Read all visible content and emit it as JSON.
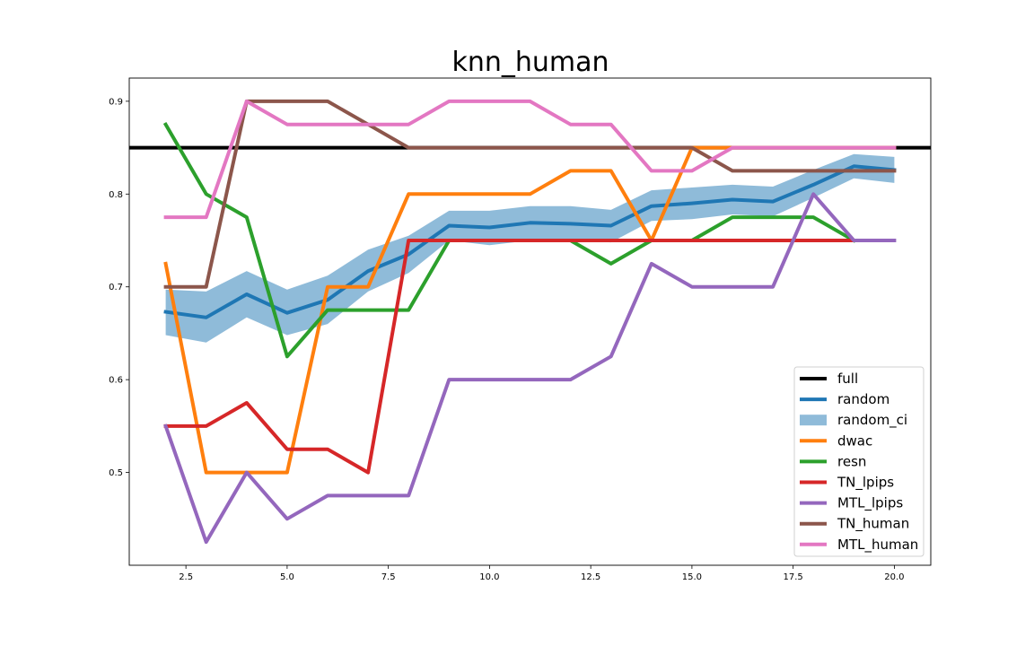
{
  "chart_data": {
    "type": "line",
    "title": "knn_human",
    "xlabel": "",
    "ylabel": "",
    "xlim": [
      1.1,
      20.9
    ],
    "ylim": [
      0.4,
      0.925
    ],
    "xticks": [
      2.5,
      5.0,
      7.5,
      10.0,
      12.5,
      15.0,
      17.5,
      20.0
    ],
    "xtick_labels": [
      "2.5",
      "5.0",
      "7.5",
      "10.0",
      "12.5",
      "15.0",
      "17.5",
      "20.0"
    ],
    "yticks": [
      0.5,
      0.6,
      0.7,
      0.8,
      0.9
    ],
    "ytick_labels": [
      "0.5",
      "0.6",
      "0.7",
      "0.8",
      "0.9"
    ],
    "grid": false,
    "legend_position": "lower-right",
    "x": [
      2,
      3,
      4,
      5,
      6,
      7,
      8,
      9,
      10,
      11,
      12,
      13,
      14,
      15,
      16,
      17,
      18,
      19,
      20
    ],
    "hline": {
      "name": "full",
      "value": 0.85,
      "color": "#000000"
    },
    "band": {
      "name": "random_ci",
      "color": "#1f77b4",
      "lower": [
        0.648,
        0.64,
        0.667,
        0.648,
        0.66,
        0.695,
        0.715,
        0.75,
        0.745,
        0.75,
        0.75,
        0.748,
        0.771,
        0.773,
        0.778,
        0.776,
        0.796,
        0.817,
        0.812
      ],
      "upper": [
        0.697,
        0.695,
        0.717,
        0.697,
        0.712,
        0.74,
        0.755,
        0.782,
        0.782,
        0.787,
        0.787,
        0.783,
        0.804,
        0.807,
        0.81,
        0.808,
        0.826,
        0.843,
        0.84
      ]
    },
    "series": [
      {
        "name": "random",
        "color": "#1f77b4",
        "values": [
          0.673,
          0.667,
          0.692,
          0.672,
          0.686,
          0.717,
          0.735,
          0.766,
          0.764,
          0.769,
          0.768,
          0.766,
          0.787,
          0.79,
          0.794,
          0.792,
          0.81,
          0.83,
          0.826
        ]
      },
      {
        "name": "dwac",
        "color": "#ff7f0e",
        "values": [
          0.725,
          0.5,
          0.5,
          0.5,
          0.7,
          0.7,
          0.8,
          0.8,
          0.8,
          0.8,
          0.825,
          0.825,
          0.75,
          0.85,
          0.85,
          0.85,
          0.85,
          0.85,
          0.85
        ]
      },
      {
        "name": "resn",
        "color": "#2ca02c",
        "values": [
          0.875,
          0.8,
          0.775,
          0.625,
          0.675,
          0.675,
          0.675,
          0.75,
          0.75,
          0.75,
          0.75,
          0.725,
          0.75,
          0.75,
          0.775,
          0.775,
          0.775,
          0.75,
          null
        ]
      },
      {
        "name": "TN_lpips",
        "color": "#d62728",
        "values": [
          0.55,
          0.55,
          0.575,
          0.525,
          0.525,
          0.5,
          0.75,
          0.75,
          0.75,
          0.75,
          0.75,
          0.75,
          0.75,
          0.75,
          0.75,
          0.75,
          0.75,
          0.75,
          null
        ]
      },
      {
        "name": "MTL_lpips",
        "color": "#9467bd",
        "values": [
          0.55,
          0.425,
          0.5,
          0.45,
          0.475,
          0.475,
          0.475,
          0.6,
          0.6,
          0.6,
          0.6,
          0.625,
          0.725,
          0.7,
          0.7,
          0.7,
          0.8,
          0.75,
          0.75
        ]
      },
      {
        "name": "TN_human",
        "color": "#8c564b",
        "values": [
          0.7,
          0.7,
          0.9,
          0.9,
          0.9,
          0.875,
          0.85,
          0.85,
          0.85,
          0.85,
          0.85,
          0.85,
          0.85,
          0.85,
          0.825,
          0.825,
          0.825,
          0.825,
          0.825
        ]
      },
      {
        "name": "MTL_human",
        "color": "#e377c2",
        "values": [
          0.775,
          0.775,
          0.9,
          0.875,
          0.875,
          0.875,
          0.875,
          0.9,
          0.9,
          0.9,
          0.875,
          0.875,
          0.825,
          0.825,
          0.85,
          0.85,
          0.85,
          0.85,
          0.85
        ]
      }
    ],
    "legend": [
      "full",
      "random",
      "random_ci",
      "dwac",
      "resn",
      "TN_lpips",
      "MTL_lpips",
      "TN_human",
      "MTL_human"
    ]
  }
}
